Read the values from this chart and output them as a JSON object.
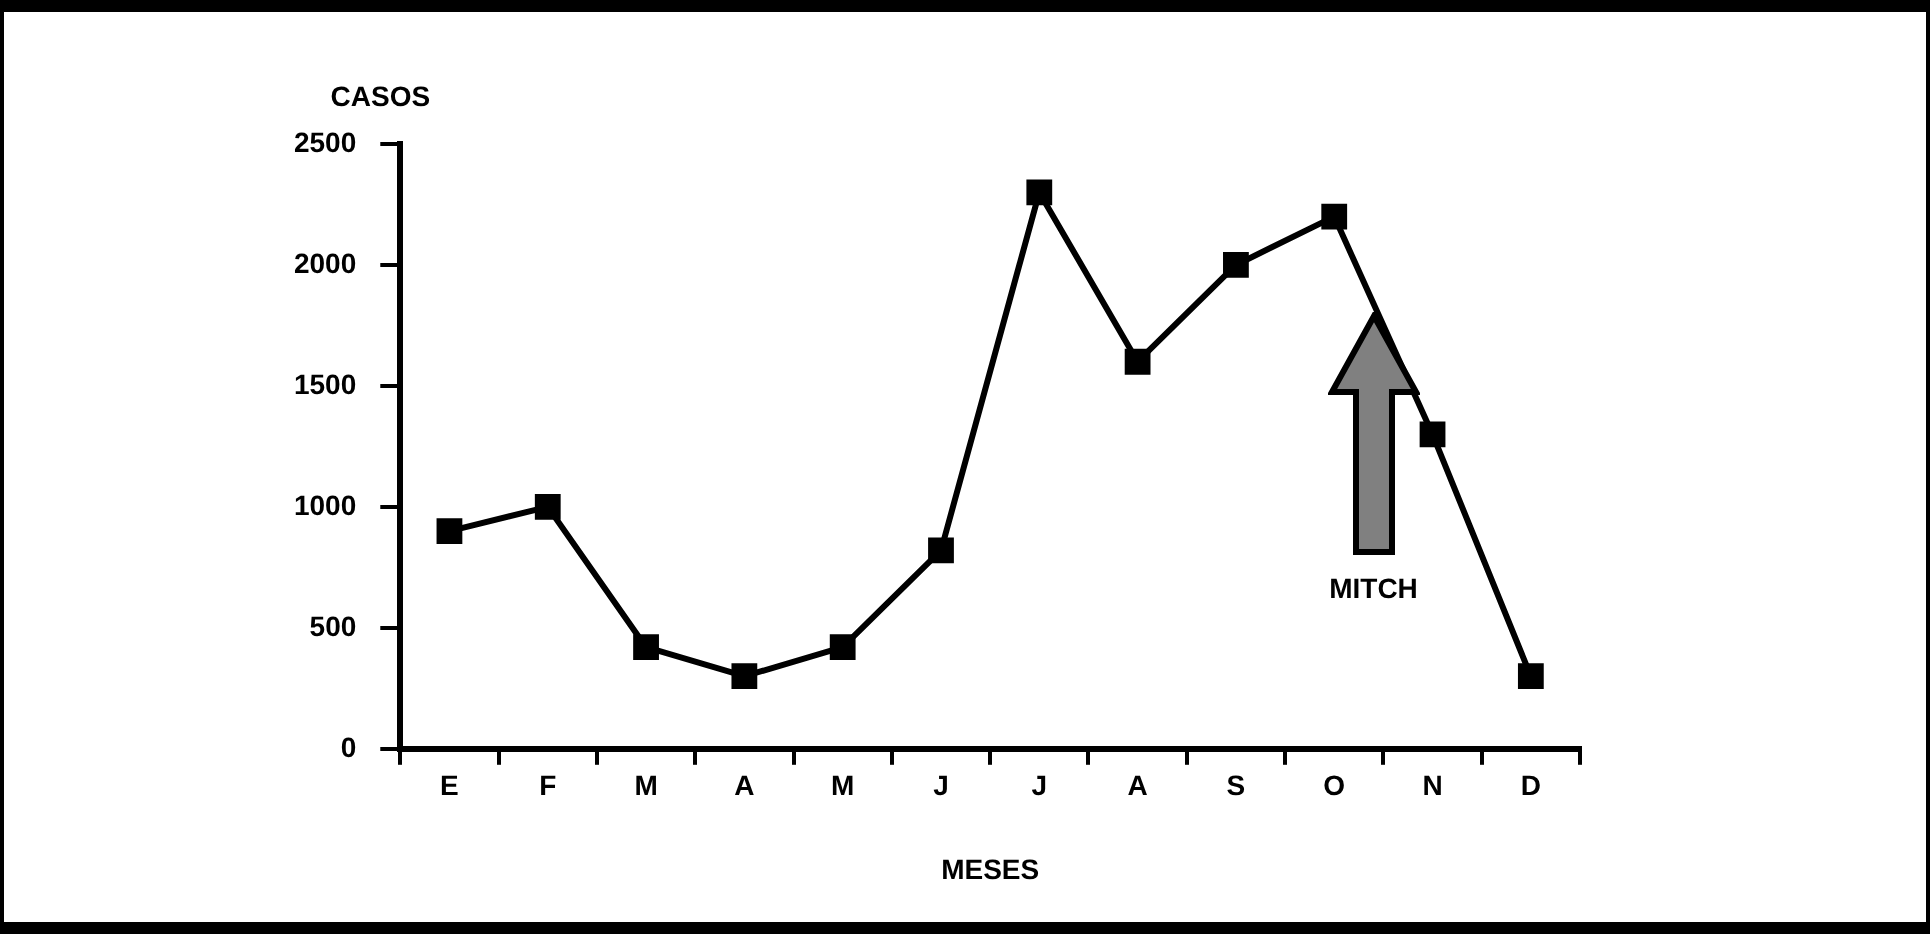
{
  "chart_data": {
    "type": "line",
    "xlabel": "MESES",
    "ylabel": "CASOS",
    "categories": [
      "E",
      "F",
      "M",
      "A",
      "M",
      "J",
      "J",
      "A",
      "S",
      "O",
      "N",
      "D"
    ],
    "series": [
      {
        "color": "#000000",
        "values": [
          900,
          1000,
          420,
          300,
          420,
          820,
          2300,
          1600,
          2000,
          2200,
          1300,
          300
        ]
      }
    ],
    "ylim": [
      0,
      2500
    ],
    "yticks": [
      0,
      500,
      1000,
      1500,
      2000,
      2500
    ],
    "grid": false,
    "legend": false,
    "marker": "square",
    "line_style": "solid",
    "annotations": [
      "MITCH"
    ]
  }
}
